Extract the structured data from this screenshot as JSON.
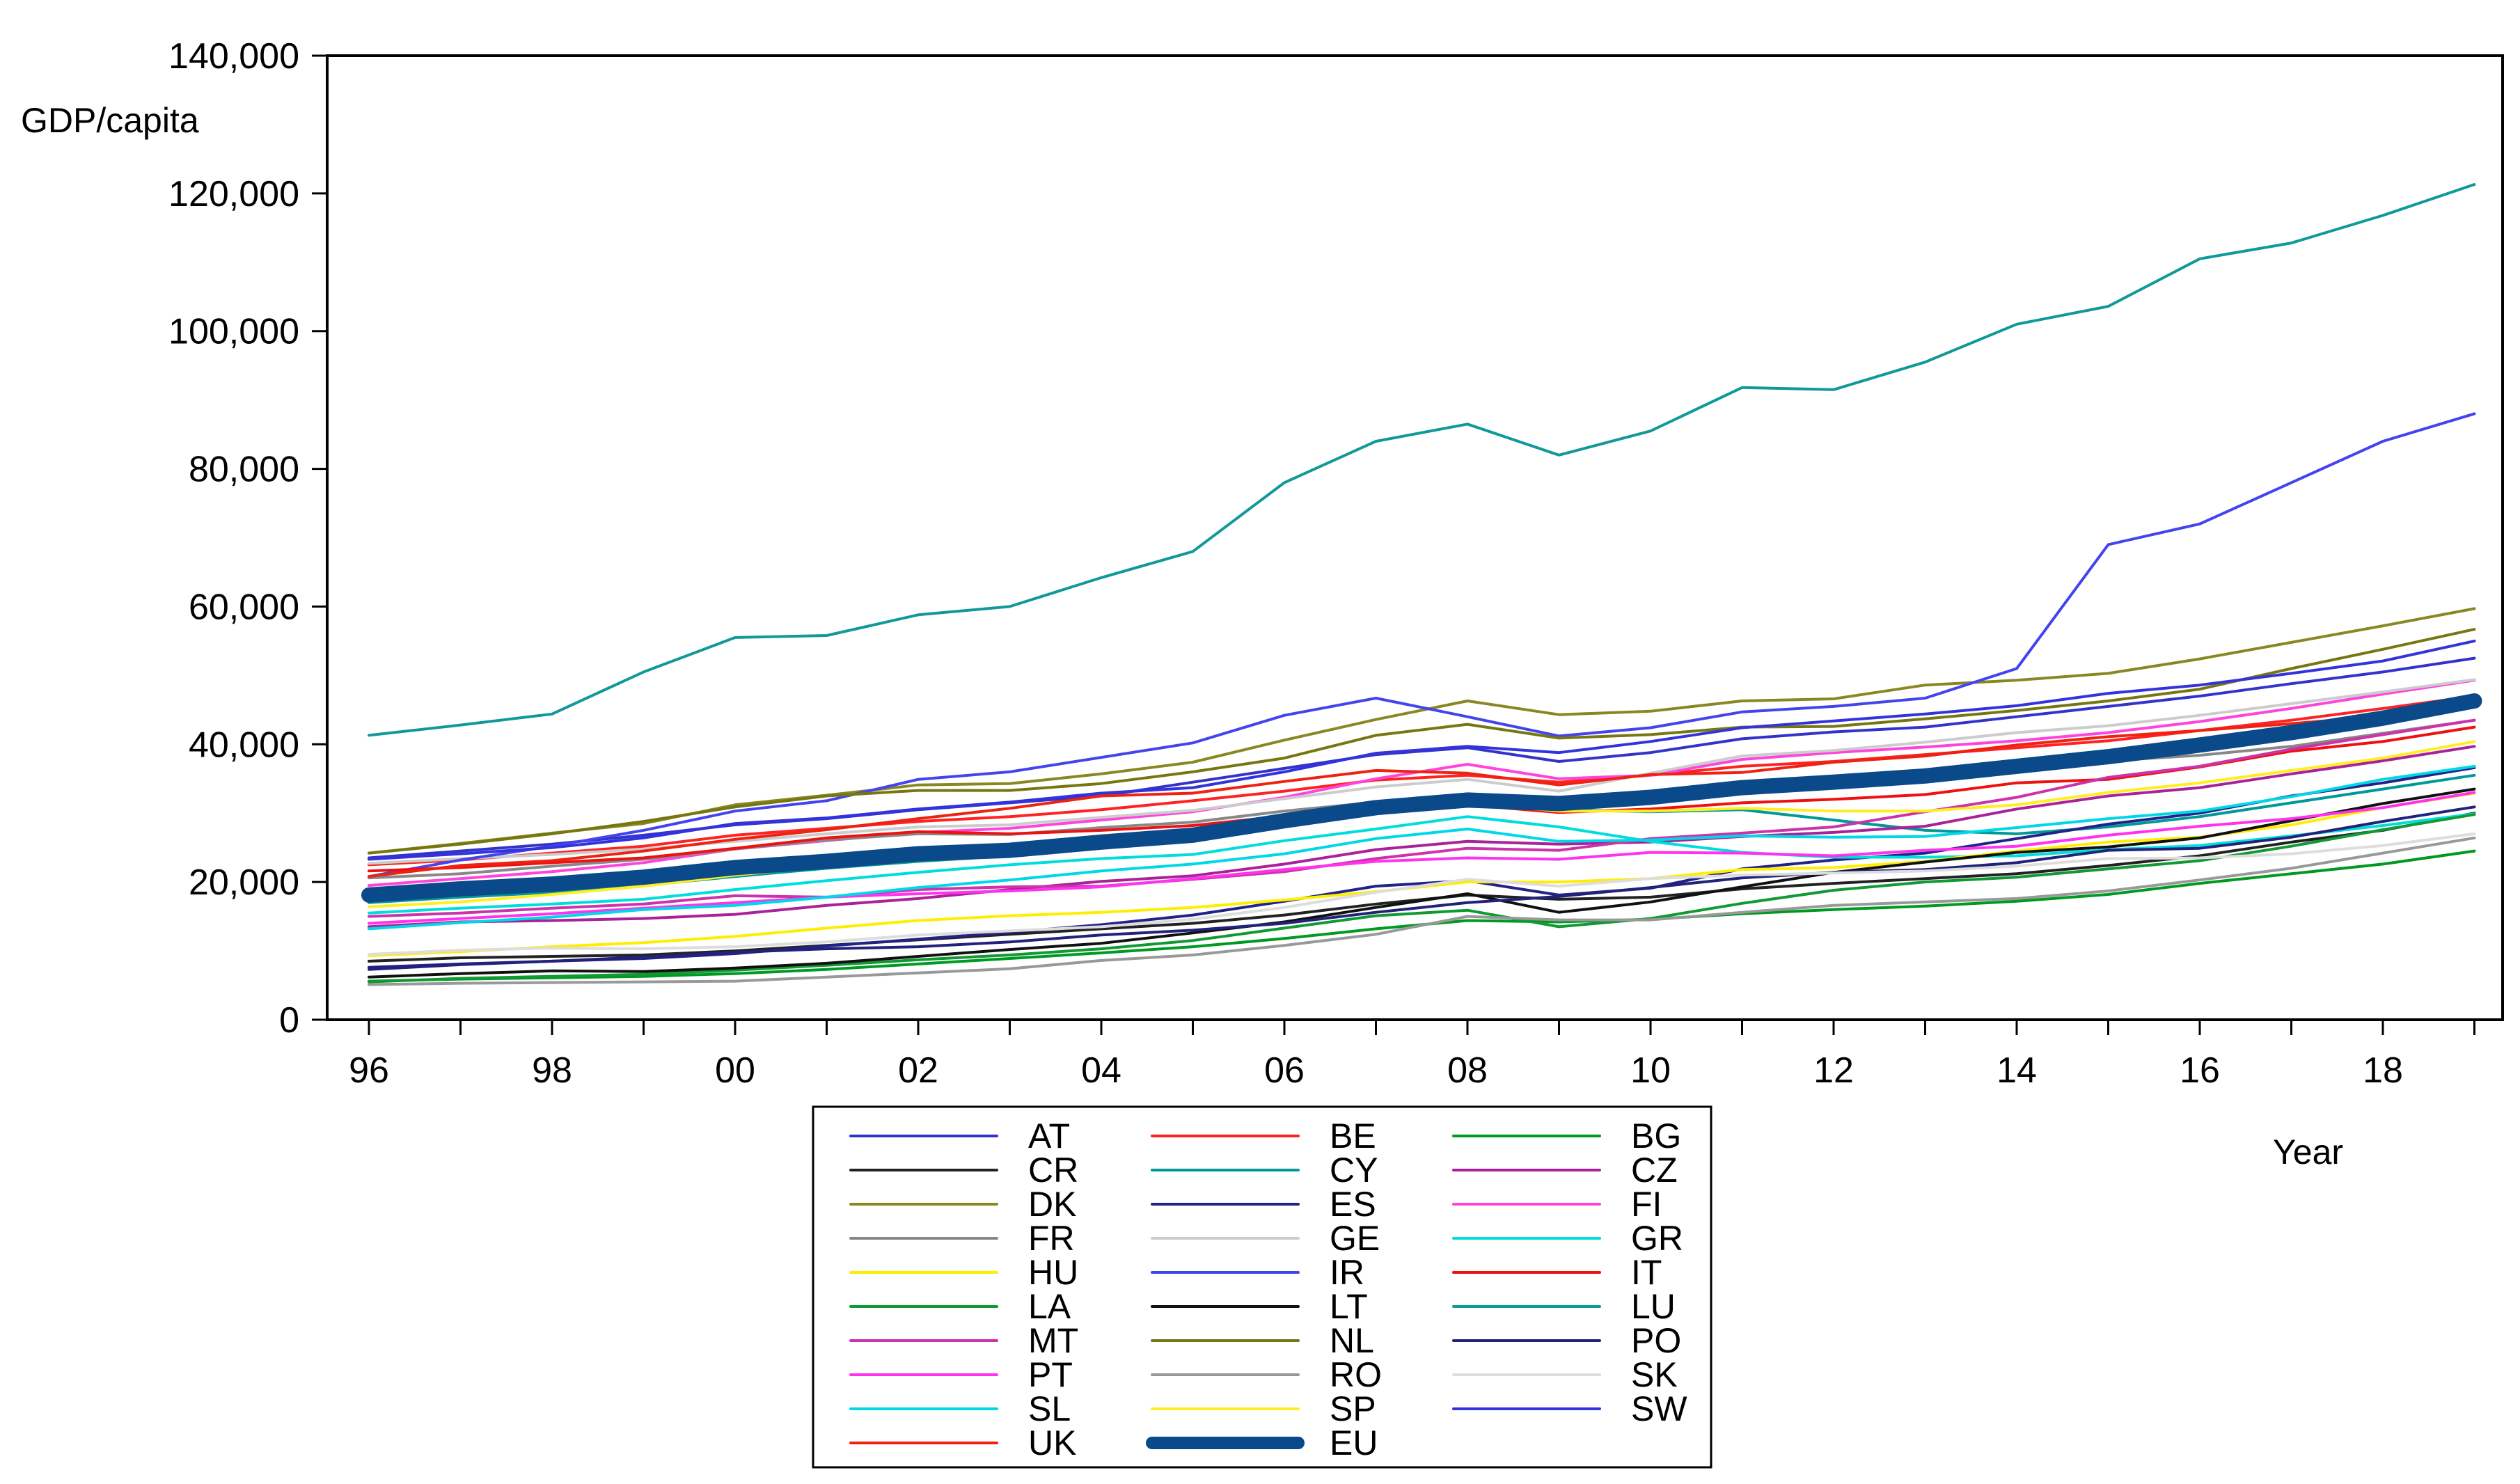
{
  "chart_data": {
    "type": "line",
    "title": "",
    "ylabel": "GDP/capita",
    "xlabel": "Year",
    "ylim": [
      0,
      140000
    ],
    "xlim": [
      1996,
      2019
    ],
    "grid": false,
    "legend_position": "bottom-center",
    "y_ticks": [
      {
        "value": 0,
        "label": "0"
      },
      {
        "value": 20000,
        "label": "20,000"
      },
      {
        "value": 40000,
        "label": "40,000"
      },
      {
        "value": 60000,
        "label": "60,000"
      },
      {
        "value": 80000,
        "label": "80,000"
      },
      {
        "value": 100000,
        "label": "100,000"
      },
      {
        "value": 120000,
        "label": "120,000"
      },
      {
        "value": 140000,
        "label": "140,000"
      }
    ],
    "x_ticks": [
      {
        "value": 1996,
        "label": "96"
      },
      {
        "value": 1998,
        "label": "98"
      },
      {
        "value": 2000,
        "label": "00"
      },
      {
        "value": 2002,
        "label": "02"
      },
      {
        "value": 2004,
        "label": "04"
      },
      {
        "value": 2006,
        "label": "06"
      },
      {
        "value": 2008,
        "label": "08"
      },
      {
        "value": 2010,
        "label": "10"
      },
      {
        "value": 2012,
        "label": "12"
      },
      {
        "value": 2014,
        "label": "14"
      },
      {
        "value": 2016,
        "label": "16"
      },
      {
        "value": 2018,
        "label": "18"
      }
    ],
    "x": [
      1996,
      1997,
      1998,
      1999,
      2000,
      2001,
      2002,
      2003,
      2004,
      2005,
      2006,
      2007,
      2008,
      2009,
      2010,
      2011,
      2012,
      2013,
      2014,
      2015,
      2016,
      2017,
      2018,
      2019
    ],
    "series": [
      {
        "name": "AT",
        "color": "#3333cc",
        "values": [
          23500,
          24500,
          25500,
          26800,
          28300,
          29200,
          30500,
          31500,
          32500,
          34500,
          36500,
          38500,
          39500,
          37500,
          38800,
          40800,
          41800,
          42500,
          44000,
          45500,
          47000,
          48800,
          50500,
          52500
        ]
      },
      {
        "name": "BE",
        "color": "#ff2222",
        "values": [
          22500,
          23200,
          24200,
          25200,
          26800,
          27800,
          28800,
          29500,
          30500,
          31800,
          33200,
          34800,
          35500,
          34500,
          35500,
          36800,
          37500,
          38500,
          39500,
          40500,
          42000,
          43500,
          45200,
          47000
        ]
      },
      {
        "name": "BG",
        "color": "#009922",
        "values": [
          5600,
          5900,
          6100,
          6300,
          6700,
          7300,
          8100,
          8900,
          9700,
          10600,
          11800,
          13200,
          14400,
          14200,
          14600,
          15400,
          16000,
          16500,
          17200,
          18200,
          19800,
          21200,
          22600,
          24500
        ]
      },
      {
        "name": "CR",
        "color": "#222222",
        "values": [
          8500,
          9000,
          9200,
          9400,
          10000,
          10800,
          11600,
          12400,
          13200,
          14000,
          15200,
          16800,
          18100,
          17500,
          17800,
          19000,
          19800,
          20500,
          21200,
          22400,
          23800,
          25800,
          27500,
          30000
        ]
      },
      {
        "name": "CY",
        "color": "#009999",
        "values": [
          17000,
          17800,
          18500,
          19500,
          20800,
          22000,
          23000,
          23800,
          25000,
          26500,
          28200,
          30500,
          31500,
          30500,
          30200,
          30500,
          29000,
          27500,
          27000,
          28000,
          29500,
          31500,
          33500,
          35500
        ]
      },
      {
        "name": "CZ",
        "color": "#aa2299",
        "values": [
          13500,
          14200,
          14400,
          14700,
          15300,
          16600,
          17600,
          18900,
          20100,
          20900,
          22600,
          24700,
          25900,
          25500,
          25800,
          26600,
          27200,
          28100,
          30600,
          32500,
          33700,
          35700,
          37600,
          39700
        ]
      },
      {
        "name": "DK",
        "color": "#888822",
        "values": [
          24200,
          25600,
          27100,
          28500,
          31200,
          32600,
          34100,
          34300,
          35700,
          37400,
          40600,
          43600,
          46300,
          44300,
          44800,
          46300,
          46600,
          48600,
          49300,
          50300,
          52400,
          54800,
          57200,
          59700
        ]
      },
      {
        "name": "ES",
        "color": "#222288",
        "values": [
          7600,
          8100,
          8500,
          8900,
          9600,
          10700,
          11700,
          12700,
          13800,
          15200,
          17200,
          19400,
          20200,
          18100,
          19100,
          21900,
          23200,
          24200,
          26300,
          28400,
          30000,
          32500,
          34400,
          36600
        ]
      },
      {
        "name": "FI",
        "color": "#ff44dd",
        "values": [
          19500,
          20500,
          21500,
          22800,
          24800,
          26000,
          27200,
          27800,
          29000,
          30200,
          32300,
          35000,
          37100,
          35000,
          35500,
          37800,
          38800,
          39600,
          40500,
          41700,
          43300,
          45200,
          47300,
          49300
        ]
      },
      {
        "name": "FR",
        "color": "#888888",
        "values": [
          20600,
          21200,
          22300,
          23300,
          24800,
          26100,
          27000,
          26900,
          27900,
          28700,
          30300,
          31600,
          32800,
          31700,
          32400,
          34000,
          34300,
          35500,
          36800,
          37600,
          38400,
          39700,
          41600,
          43500
        ]
      },
      {
        "name": "GE",
        "color": "#cccccc",
        "values": [
          22700,
          23400,
          24000,
          24800,
          25900,
          27000,
          28000,
          28300,
          29400,
          30400,
          32100,
          33800,
          34900,
          33200,
          35800,
          38300,
          39100,
          40300,
          41700,
          42700,
          44200,
          45900,
          47600,
          49400
        ]
      },
      {
        "name": "GR",
        "color": "#00dddd",
        "values": [
          15500,
          16200,
          16800,
          17500,
          18900,
          20200,
          21400,
          22500,
          23400,
          24000,
          26000,
          27700,
          29500,
          28000,
          25900,
          24300,
          23600,
          23600,
          23800,
          24700,
          25300,
          26700,
          28200,
          29900
        ]
      },
      {
        "name": "HU",
        "color": "#ffee00",
        "values": [
          9300,
          9900,
          10600,
          11200,
          12100,
          13300,
          14400,
          15100,
          15600,
          16300,
          17400,
          18600,
          20000,
          20000,
          20500,
          21800,
          22100,
          23000,
          24500,
          25800,
          26500,
          28300,
          30800,
          32900
        ]
      },
      {
        "name": "IR",
        "color": "#4444ee",
        "values": [
          20800,
          23200,
          25200,
          27500,
          30300,
          31800,
          34900,
          36000,
          38100,
          40200,
          44200,
          46700,
          44000,
          41200,
          42400,
          44700,
          45500,
          46700,
          51000,
          69000,
          72000,
          78000,
          84000,
          88000
        ]
      },
      {
        "name": "IT",
        "color": "#ee1111",
        "values": [
          21600,
          22100,
          22800,
          23500,
          24900,
          26400,
          27300,
          27000,
          27500,
          28200,
          29600,
          31100,
          31200,
          30100,
          30600,
          31500,
          32000,
          32700,
          34400,
          34900,
          36700,
          39000,
          40400,
          42500
        ]
      },
      {
        "name": "LA",
        "color": "#119933",
        "values": [
          5500,
          6000,
          6300,
          6600,
          7200,
          7900,
          8700,
          9400,
          10300,
          11500,
          13300,
          15100,
          15900,
          13500,
          14700,
          16900,
          18800,
          20000,
          20700,
          21900,
          23100,
          25200,
          27600,
          29800
        ]
      },
      {
        "name": "LT",
        "color": "#111111",
        "values": [
          6200,
          6700,
          7100,
          7000,
          7500,
          8200,
          9200,
          10200,
          11100,
          12600,
          14200,
          16300,
          18300,
          15600,
          17100,
          19300,
          21400,
          22900,
          24300,
          25100,
          26400,
          28900,
          31400,
          33500
        ]
      },
      {
        "name": "LU",
        "color": "#119999",
        "values": [
          41300,
          42800,
          44400,
          50500,
          55500,
          55800,
          58800,
          60000,
          64200,
          68000,
          78000,
          84000,
          86500,
          82000,
          85500,
          91800,
          91500,
          95500,
          101000,
          103600,
          110500,
          112800,
          116800,
          121300
        ]
      },
      {
        "name": "MT",
        "color": "#cc33aa",
        "values": [
          15000,
          15500,
          16200,
          16800,
          18000,
          17800,
          18900,
          19300,
          19400,
          20400,
          21500,
          23400,
          24900,
          24600,
          26300,
          27100,
          28000,
          30200,
          32300,
          35200,
          36800,
          39300,
          41400,
          43500
        ]
      },
      {
        "name": "NL",
        "color": "#777711",
        "values": [
          24200,
          25500,
          27000,
          28800,
          30900,
          32500,
          33300,
          33300,
          34300,
          36000,
          38000,
          41300,
          42900,
          40900,
          41400,
          42500,
          42600,
          43700,
          44900,
          46300,
          48000,
          51000,
          53800,
          56700
        ]
      },
      {
        "name": "PO",
        "color": "#22227a",
        "values": [
          7300,
          8000,
          8500,
          9100,
          9800,
          10300,
          10600,
          11300,
          12300,
          13000,
          14000,
          15600,
          17000,
          17900,
          19200,
          20600,
          21400,
          21800,
          22800,
          24600,
          24900,
          26500,
          28800,
          30900
        ]
      },
      {
        "name": "PT",
        "color": "#ff33ee",
        "values": [
          14000,
          14700,
          15400,
          16200,
          17000,
          17800,
          18300,
          18700,
          19300,
          20500,
          21800,
          23000,
          23500,
          23300,
          24300,
          24200,
          23800,
          24600,
          25200,
          26800,
          28100,
          29200,
          30800,
          33000
        ]
      },
      {
        "name": "RO",
        "color": "#999999",
        "values": [
          5100,
          5300,
          5400,
          5500,
          5600,
          6200,
          6800,
          7400,
          8600,
          9400,
          10800,
          12400,
          15000,
          14500,
          14500,
          15600,
          16600,
          17100,
          17600,
          18700,
          20300,
          22000,
          24200,
          26400
        ]
      },
      {
        "name": "SK",
        "color": "#dddddd",
        "values": [
          9500,
          10100,
          10400,
          10300,
          10600,
          11300,
          12300,
          12900,
          13500,
          14600,
          16300,
          18500,
          20400,
          19400,
          20500,
          21000,
          21300,
          21600,
          22300,
          23400,
          23500,
          24100,
          25300,
          27000
        ]
      },
      {
        "name": "SL",
        "color": "#00d8e8",
        "values": [
          13200,
          14100,
          14900,
          16000,
          16600,
          17800,
          19200,
          20300,
          21600,
          22600,
          24100,
          26300,
          27700,
          25900,
          26100,
          26700,
          26500,
          26600,
          27900,
          29200,
          30300,
          32400,
          34900,
          36800
        ]
      },
      {
        "name": "SP",
        "color": "#ffee22",
        "values": [
          16400,
          17100,
          18200,
          19400,
          21000,
          22300,
          23700,
          24300,
          25000,
          26200,
          28400,
          30600,
          31500,
          30300,
          30300,
          30700,
          30300,
          30300,
          31200,
          33000,
          34400,
          36200,
          38000,
          40400
        ]
      },
      {
        "name": "SW",
        "color": "#3333dd",
        "values": [
          23300,
          24100,
          25000,
          26400,
          28500,
          29300,
          30600,
          31600,
          32900,
          33700,
          36000,
          38700,
          39700,
          38800,
          40400,
          42400,
          43400,
          44400,
          45600,
          47400,
          48600,
          50300,
          52100,
          55000
        ]
      },
      {
        "name": "UK",
        "color": "#ee2211",
        "values": [
          20800,
          22400,
          23100,
          24500,
          26200,
          27600,
          29200,
          30700,
          32500,
          32900,
          34600,
          36200,
          35800,
          34100,
          35600,
          35900,
          37400,
          38300,
          39900,
          41100,
          42000,
          43000,
          44100,
          46000
        ]
      },
      {
        "name": "EU",
        "color": "#0a4a8a",
        "values": [
          18100,
          19000,
          19700,
          20700,
          22100,
          23000,
          24100,
          24600,
          25800,
          26800,
          28900,
          30800,
          31900,
          31400,
          32300,
          33700,
          34500,
          35400,
          36800,
          38200,
          39900,
          41700,
          43800,
          46300
        ]
      }
    ]
  }
}
